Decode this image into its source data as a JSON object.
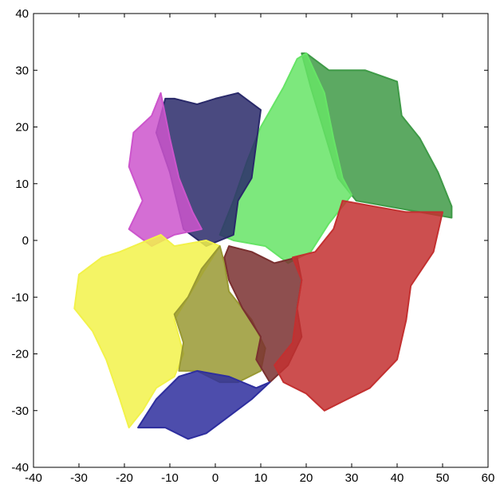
{
  "chart_data": {
    "type": "scatter",
    "title": "",
    "xlabel": "",
    "ylabel": "",
    "xlim": [
      -40,
      60
    ],
    "ylim": [
      -40,
      40
    ],
    "xticks": [
      -40,
      -30,
      -20,
      -10,
      0,
      10,
      20,
      30,
      40,
      50,
      60
    ],
    "yticks": [
      -40,
      -30,
      -20,
      -10,
      0,
      10,
      20,
      30,
      40
    ],
    "grid": false,
    "series": [
      {
        "color": "#3f9a47",
        "values": [
          [
            20,
            33
          ],
          [
            25,
            30
          ],
          [
            33,
            30
          ],
          [
            40,
            28
          ],
          [
            41,
            22
          ],
          [
            45,
            18
          ],
          [
            49,
            12
          ],
          [
            52,
            6
          ],
          [
            52,
            4
          ],
          [
            45,
            5
          ],
          [
            38,
            6
          ],
          [
            31,
            7
          ],
          [
            27,
            11
          ],
          [
            24,
            19
          ],
          [
            21,
            27
          ],
          [
            19,
            33
          ]
        ]
      },
      {
        "color": "#66e466",
        "values": [
          [
            20,
            33
          ],
          [
            24,
            26
          ],
          [
            26,
            18
          ],
          [
            28,
            11
          ],
          [
            30,
            8
          ],
          [
            25,
            3
          ],
          [
            21,
            -2
          ],
          [
            16,
            -4
          ],
          [
            11,
            -1
          ],
          [
            4,
            0
          ],
          [
            1,
            1
          ],
          [
            4,
            7
          ],
          [
            7,
            14
          ],
          [
            10,
            20
          ],
          [
            15,
            27
          ],
          [
            18,
            32
          ]
        ]
      },
      {
        "color": "#2a2a6a",
        "values": [
          [
            -9,
            25
          ],
          [
            -4,
            24
          ],
          [
            0,
            25
          ],
          [
            5,
            26
          ],
          [
            10,
            23
          ],
          [
            9,
            17
          ],
          [
            8,
            11
          ],
          [
            5,
            7
          ],
          [
            4,
            1
          ],
          [
            1,
            0
          ],
          [
            -2,
            -1
          ],
          [
            -7,
            2
          ],
          [
            -10,
            12
          ],
          [
            -13,
            19
          ],
          [
            -11,
            25
          ]
        ]
      },
      {
        "color": "#cc55cc",
        "values": [
          [
            -12,
            26
          ],
          [
            -10,
            18
          ],
          [
            -8,
            11
          ],
          [
            -5,
            5
          ],
          [
            -3,
            2
          ],
          [
            -9,
            1
          ],
          [
            -14,
            -1
          ],
          [
            -19,
            2
          ],
          [
            -16,
            7
          ],
          [
            -19,
            13
          ],
          [
            -18,
            19
          ],
          [
            -14,
            22
          ]
        ]
      },
      {
        "color": "#f2f24a",
        "values": [
          [
            -12,
            1
          ],
          [
            -9,
            -1
          ],
          [
            -2,
            0
          ],
          [
            1,
            -1
          ],
          [
            -3,
            -6
          ],
          [
            -6,
            -10
          ],
          [
            -9,
            -14
          ],
          [
            -7,
            -20
          ],
          [
            -9,
            -24
          ],
          [
            -13,
            -26
          ],
          [
            -16,
            -30
          ],
          [
            -19,
            -33
          ],
          [
            -21,
            -28
          ],
          [
            -24,
            -21
          ],
          [
            -27,
            -16
          ],
          [
            -31,
            -12
          ],
          [
            -30,
            -6
          ],
          [
            -25,
            -3
          ],
          [
            -21,
            -2
          ]
        ]
      },
      {
        "color": "#999933",
        "values": [
          [
            1,
            -1
          ],
          [
            -3,
            -5
          ],
          [
            -6,
            -10
          ],
          [
            -9,
            -13
          ],
          [
            -7,
            -18
          ],
          [
            -8,
            -23
          ],
          [
            -4,
            -23
          ],
          [
            1,
            -25
          ],
          [
            5,
            -25
          ],
          [
            10,
            -23
          ],
          [
            11,
            -19
          ],
          [
            8,
            -14
          ],
          [
            3,
            -9
          ],
          [
            2,
            -4
          ]
        ]
      },
      {
        "color": "#7a3030",
        "values": [
          [
            3,
            -1
          ],
          [
            8,
            -2
          ],
          [
            13,
            -4
          ],
          [
            18,
            -3
          ],
          [
            19,
            -7
          ],
          [
            18,
            -12
          ],
          [
            19,
            -17
          ],
          [
            16,
            -22
          ],
          [
            12,
            -25
          ],
          [
            9,
            -21
          ],
          [
            10,
            -17
          ],
          [
            6,
            -12
          ],
          [
            3,
            -7
          ],
          [
            2,
            -3
          ]
        ]
      },
      {
        "color": "#c33030",
        "values": [
          [
            28,
            7
          ],
          [
            35,
            6
          ],
          [
            42,
            5
          ],
          [
            50,
            5
          ],
          [
            48,
            -2
          ],
          [
            43,
            -8
          ],
          [
            42,
            -14
          ],
          [
            40,
            -21
          ],
          [
            34,
            -26
          ],
          [
            29,
            -28
          ],
          [
            24,
            -30
          ],
          [
            20,
            -27
          ],
          [
            15,
            -25
          ],
          [
            13,
            -22
          ],
          [
            17,
            -18
          ],
          [
            18,
            -12
          ],
          [
            19,
            -7
          ],
          [
            17,
            -3
          ],
          [
            22,
            -2
          ],
          [
            26,
            2
          ]
        ]
      },
      {
        "color": "#2e2e9e",
        "values": [
          [
            -17,
            -33
          ],
          [
            -13,
            -28
          ],
          [
            -8,
            -24
          ],
          [
            -4,
            -23
          ],
          [
            3,
            -24
          ],
          [
            9,
            -26
          ],
          [
            12,
            -25
          ],
          [
            8,
            -28
          ],
          [
            3,
            -31
          ],
          [
            -2,
            -34
          ],
          [
            -6,
            -35
          ],
          [
            -11,
            -33
          ],
          [
            -15,
            -33
          ]
        ]
      }
    ]
  }
}
